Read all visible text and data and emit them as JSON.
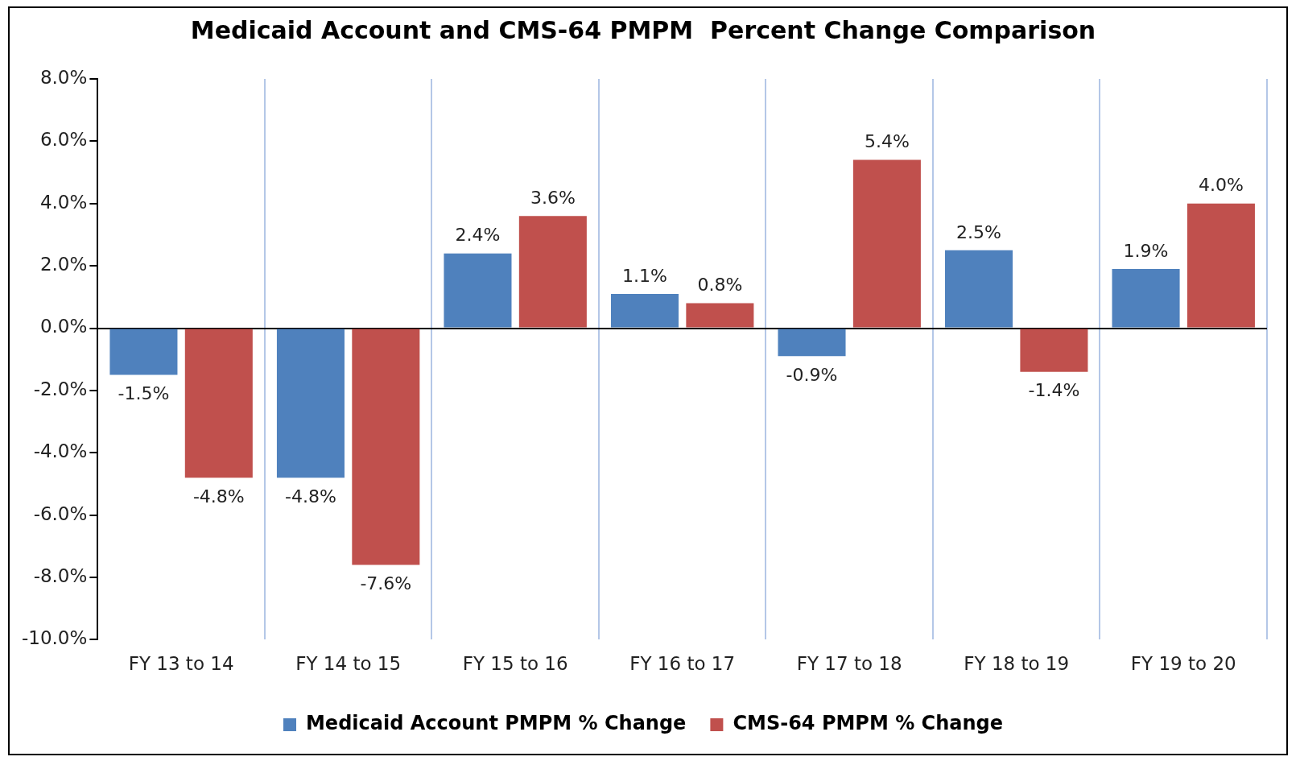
{
  "chart_data": {
    "type": "bar",
    "title": "Medicaid Account and CMS-64 PMPM  Percent Change Comparison",
    "categories": [
      "FY 13 to 14",
      "FY 14 to 15",
      "FY 15 to 16",
      "FY 16 to 17",
      "FY 17 to 18",
      "FY 18 to 19",
      "FY 19 to 20"
    ],
    "series": [
      {
        "name": "Medicaid Account PMPM % Change",
        "color": "#4f81bd",
        "values": [
          -1.5,
          -4.8,
          2.4,
          1.1,
          -0.9,
          2.5,
          1.9
        ],
        "value_labels": [
          "-1.5%",
          "-4.8%",
          "2.4%",
          "1.1%",
          "-0.9%",
          "2.5%",
          "1.9%"
        ]
      },
      {
        "name": "CMS-64 PMPM % Change",
        "color": "#c0504d",
        "values": [
          -4.8,
          -7.6,
          3.6,
          0.8,
          5.4,
          -1.4,
          4.0
        ],
        "value_labels": [
          "-4.8%",
          "-7.6%",
          "3.6%",
          "0.8%",
          "5.4%",
          "-1.4%",
          "4.0%"
        ]
      }
    ],
    "ylim": [
      -10,
      8
    ],
    "yticks": [
      {
        "value": -10,
        "label": "-10.0%"
      },
      {
        "value": -8,
        "label": "-8.0%"
      },
      {
        "value": -6,
        "label": "-6.0%"
      },
      {
        "value": -4,
        "label": "-4.0%"
      },
      {
        "value": -2,
        "label": "-2.0%"
      },
      {
        "value": 0,
        "label": "0.0%"
      },
      {
        "value": 2,
        "label": "2.0%"
      },
      {
        "value": 4,
        "label": "4.0%"
      },
      {
        "value": 6,
        "label": "6.0%"
      },
      {
        "value": 8,
        "label": "8.0%"
      }
    ],
    "grid": "x",
    "legend": "bottom"
  }
}
